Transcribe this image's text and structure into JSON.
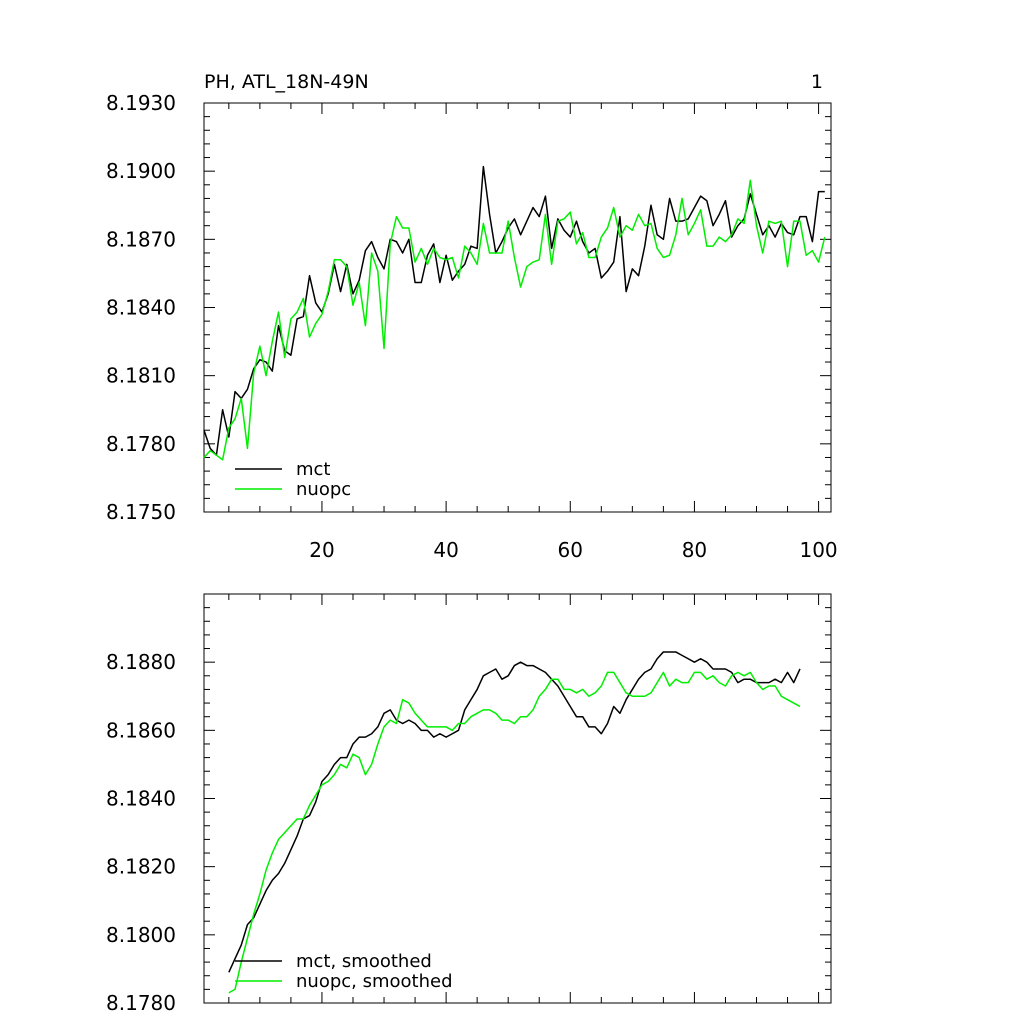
{
  "page": {
    "title_left": "PH, ATL_18N-49N",
    "title_right": "1"
  },
  "chart_data": [
    {
      "type": "line",
      "title": "PH, ATL_18N-49N",
      "xlim": [
        1,
        102
      ],
      "ylim": [
        8.175,
        8.193
      ],
      "xticks": [
        20,
        40,
        60,
        80,
        100
      ],
      "xtick_labels": [
        "20",
        "40",
        "60",
        "80",
        "100"
      ],
      "yticks": [
        8.175,
        8.178,
        8.181,
        8.184,
        8.187,
        8.19,
        8.193
      ],
      "ytick_labels": [
        "8.1750",
        "8.1780",
        "8.1810",
        "8.1840",
        "8.1870",
        "8.1900",
        "8.1930"
      ],
      "legend_position": "bottom-left",
      "series": [
        {
          "name": "mct",
          "color": "#000000",
          "x": [
            1,
            2,
            3,
            4,
            5,
            6,
            7,
            8,
            9,
            10,
            11,
            12,
            13,
            14,
            15,
            16,
            17,
            18,
            19,
            20,
            21,
            22,
            23,
            24,
            25,
            26,
            27,
            28,
            29,
            30,
            31,
            32,
            33,
            34,
            35,
            36,
            37,
            38,
            39,
            40,
            41,
            42,
            43,
            44,
            45,
            46,
            47,
            48,
            49,
            50,
            51,
            52,
            53,
            54,
            55,
            56,
            57,
            58,
            59,
            60,
            61,
            62,
            63,
            64,
            65,
            66,
            67,
            68,
            69,
            70,
            71,
            72,
            73,
            74,
            75,
            76,
            77,
            78,
            79,
            80,
            81,
            82,
            83,
            84,
            85,
            86,
            87,
            88,
            89,
            90,
            91,
            92,
            93,
            94,
            95,
            96,
            97,
            98,
            99,
            100,
            101
          ],
          "y": [
            8.1786,
            8.1778,
            8.1775,
            8.1795,
            8.1783,
            8.1803,
            8.18,
            8.1804,
            8.1813,
            8.1817,
            8.1816,
            8.1812,
            8.1832,
            8.1821,
            8.1819,
            8.1835,
            8.1836,
            8.1854,
            8.1842,
            8.1838,
            8.1846,
            8.1859,
            8.1847,
            8.1859,
            8.1846,
            8.1852,
            8.1865,
            8.1869,
            8.1862,
            8.1857,
            8.187,
            8.1869,
            8.1864,
            8.187,
            8.1851,
            8.1851,
            8.1863,
            8.1868,
            8.1851,
            8.1863,
            8.1852,
            8.1856,
            8.1859,
            8.1867,
            8.1866,
            8.1902,
            8.1881,
            8.1864,
            8.1869,
            8.1875,
            8.1879,
            8.1872,
            8.1878,
            8.1884,
            8.188,
            8.1889,
            8.1866,
            8.1879,
            8.1874,
            8.1871,
            8.1878,
            8.1869,
            8.1864,
            8.1866,
            8.1853,
            8.1856,
            8.186,
            8.188,
            8.1847,
            8.1857,
            8.1854,
            8.1867,
            8.1885,
            8.1872,
            8.187,
            8.1888,
            8.1878,
            8.1878,
            8.1879,
            8.1884,
            8.1889,
            8.1887,
            8.1876,
            8.1881,
            8.1887,
            8.1871,
            8.1876,
            8.1879,
            8.189,
            8.1881,
            8.1872,
            8.1876,
            8.1871,
            8.1877,
            8.1873,
            8.1872,
            8.188,
            8.188,
            8.1869,
            8.1891,
            8.1891
          ]
        },
        {
          "name": "nuopc",
          "color": "#00ee00",
          "x": [
            1,
            2,
            3,
            4,
            5,
            6,
            7,
            8,
            9,
            10,
            11,
            12,
            13,
            14,
            15,
            16,
            17,
            18,
            19,
            20,
            21,
            22,
            23,
            24,
            25,
            26,
            27,
            28,
            29,
            30,
            31,
            32,
            33,
            34,
            35,
            36,
            37,
            38,
            39,
            40,
            41,
            42,
            43,
            44,
            45,
            46,
            47,
            48,
            49,
            50,
            51,
            52,
            53,
            54,
            55,
            56,
            57,
            58,
            59,
            60,
            61,
            62,
            63,
            64,
            65,
            66,
            67,
            68,
            69,
            70,
            71,
            72,
            73,
            74,
            75,
            76,
            77,
            78,
            79,
            80,
            81,
            82,
            83,
            84,
            85,
            86,
            87,
            88,
            89,
            90,
            91,
            92,
            93,
            94,
            95,
            96,
            97,
            98,
            99,
            100,
            101
          ],
          "y": [
            8.1774,
            8.1777,
            8.1775,
            8.1773,
            8.1787,
            8.1791,
            8.18,
            8.1778,
            8.1811,
            8.1823,
            8.181,
            8.1825,
            8.1838,
            8.1818,
            8.1835,
            8.1838,
            8.1844,
            8.1827,
            8.1833,
            8.1837,
            8.1847,
            8.1861,
            8.1861,
            8.1858,
            8.1841,
            8.1851,
            8.1832,
            8.1864,
            8.1856,
            8.1822,
            8.1868,
            8.188,
            8.1875,
            8.1875,
            8.186,
            8.1866,
            8.1859,
            8.1866,
            8.1862,
            8.1861,
            8.1862,
            8.1853,
            8.1867,
            8.1864,
            8.1859,
            8.1877,
            8.1864,
            8.1864,
            8.1864,
            8.1878,
            8.1862,
            8.1849,
            8.1858,
            8.186,
            8.1861,
            8.1881,
            8.1859,
            8.1878,
            8.1879,
            8.1882,
            8.1868,
            8.1873,
            8.1862,
            8.1862,
            8.1871,
            8.1875,
            8.1884,
            8.1871,
            8.1876,
            8.1874,
            8.1881,
            8.1876,
            8.1877,
            8.1866,
            8.1862,
            8.1863,
            8.1872,
            8.1888,
            8.1872,
            8.1877,
            8.1883,
            8.1867,
            8.1867,
            8.1871,
            8.1869,
            8.1872,
            8.1879,
            8.1877,
            8.1896,
            8.1876,
            8.1864,
            8.1878,
            8.1877,
            8.1878,
            8.1858,
            8.1878,
            8.1878,
            8.1863,
            8.1865,
            8.186,
            8.1871
          ]
        }
      ]
    },
    {
      "type": "line",
      "xlim": [
        1,
        102
      ],
      "ylim": [
        8.178,
        8.19
      ],
      "xticks": [
        20,
        40,
        60,
        80,
        100
      ],
      "yticks": [
        8.178,
        8.18,
        8.182,
        8.184,
        8.186,
        8.188
      ],
      "ytick_labels": [
        "8.1780",
        "8.1800",
        "8.1820",
        "8.1840",
        "8.1860",
        "8.1880"
      ],
      "legend_position": "bottom-left",
      "series": [
        {
          "name": "mct, smoothed",
          "color": "#000000",
          "x": [
            5,
            6,
            7,
            8,
            9,
            10,
            11,
            12,
            13,
            14,
            15,
            16,
            17,
            18,
            19,
            20,
            21,
            22,
            23,
            24,
            25,
            26,
            27,
            28,
            29,
            30,
            31,
            32,
            33,
            34,
            35,
            36,
            37,
            38,
            39,
            40,
            41,
            42,
            43,
            44,
            45,
            46,
            47,
            48,
            49,
            50,
            51,
            52,
            53,
            54,
            55,
            56,
            57,
            58,
            59,
            60,
            61,
            62,
            63,
            64,
            65,
            66,
            67,
            68,
            69,
            70,
            71,
            72,
            73,
            74,
            75,
            76,
            77,
            78,
            79,
            80,
            81,
            82,
            83,
            84,
            85,
            86,
            87,
            88,
            89,
            90,
            91,
            92,
            93,
            94,
            95,
            96,
            97
          ],
          "y": [
            8.1789,
            8.1793,
            8.1797,
            8.1803,
            8.1805,
            8.1809,
            8.1813,
            8.1816,
            8.1818,
            8.1821,
            8.1825,
            8.1829,
            8.1834,
            8.1835,
            8.1839,
            8.1845,
            8.1847,
            8.185,
            8.1852,
            8.1852,
            8.1856,
            8.1858,
            8.1858,
            8.1859,
            8.1861,
            8.1865,
            8.1866,
            8.1863,
            8.1862,
            8.1863,
            8.1862,
            8.186,
            8.186,
            8.1858,
            8.1859,
            8.1858,
            8.1859,
            8.186,
            8.1866,
            8.1869,
            8.1872,
            8.1876,
            8.1877,
            8.1878,
            8.1875,
            8.1876,
            8.1879,
            8.188,
            8.1879,
            8.1879,
            8.1878,
            8.1877,
            8.1875,
            8.1873,
            8.187,
            8.1867,
            8.1864,
            8.1864,
            8.1861,
            8.1861,
            8.1859,
            8.1862,
            8.1867,
            8.1865,
            8.1869,
            8.1872,
            8.1875,
            8.1877,
            8.1878,
            8.1881,
            8.1883,
            8.1883,
            8.1883,
            8.1882,
            8.1881,
            8.188,
            8.1881,
            8.188,
            8.1878,
            8.1878,
            8.1878,
            8.1877,
            8.1874,
            8.1875,
            8.1875,
            8.1874,
            8.1874,
            8.1874,
            8.1875,
            8.1874,
            8.1877,
            8.1874,
            8.1878
          ]
        },
        {
          "name": "nuopc, smoothed",
          "color": "#00ee00",
          "x": [
            5,
            6,
            7,
            8,
            9,
            10,
            11,
            12,
            13,
            14,
            15,
            16,
            17,
            18,
            19,
            20,
            21,
            22,
            23,
            24,
            25,
            26,
            27,
            28,
            29,
            30,
            31,
            32,
            33,
            34,
            35,
            36,
            37,
            38,
            39,
            40,
            41,
            42,
            43,
            44,
            45,
            46,
            47,
            48,
            49,
            50,
            51,
            52,
            53,
            54,
            55,
            56,
            57,
            58,
            59,
            60,
            61,
            62,
            63,
            64,
            65,
            66,
            67,
            68,
            69,
            70,
            71,
            72,
            73,
            74,
            75,
            76,
            77,
            78,
            79,
            80,
            81,
            82,
            83,
            84,
            85,
            86,
            87,
            88,
            89,
            90,
            91,
            92,
            93,
            94,
            95,
            96,
            97
          ],
          "y": [
            8.1783,
            8.1784,
            8.1792,
            8.1799,
            8.1806,
            8.1812,
            8.1819,
            8.1824,
            8.1828,
            8.183,
            8.1832,
            8.1834,
            8.1834,
            8.1838,
            8.1841,
            8.1844,
            8.1845,
            8.1847,
            8.185,
            8.1849,
            8.1853,
            8.1852,
            8.1847,
            8.185,
            8.1856,
            8.1861,
            8.1863,
            8.1862,
            8.1869,
            8.1868,
            8.1865,
            8.1863,
            8.1861,
            8.1861,
            8.1861,
            8.1861,
            8.186,
            8.1862,
            8.1862,
            8.1864,
            8.1865,
            8.1866,
            8.1866,
            8.1865,
            8.1863,
            8.1863,
            8.1862,
            8.1864,
            8.1864,
            8.1866,
            8.187,
            8.1872,
            8.1875,
            8.1875,
            8.1872,
            8.1872,
            8.1871,
            8.1872,
            8.187,
            8.1871,
            8.1873,
            8.1877,
            8.1877,
            8.1874,
            8.1871,
            8.187,
            8.187,
            8.187,
            8.1871,
            8.1874,
            8.1877,
            8.1873,
            8.1875,
            8.1874,
            8.1874,
            8.1877,
            8.1877,
            8.1875,
            8.1876,
            8.1874,
            8.1873,
            8.1876,
            8.1877,
            8.1876,
            8.1877,
            8.1874,
            8.1872,
            8.1873,
            8.1873,
            8.187,
            8.1869,
            8.1868,
            8.1867
          ]
        }
      ]
    }
  ]
}
